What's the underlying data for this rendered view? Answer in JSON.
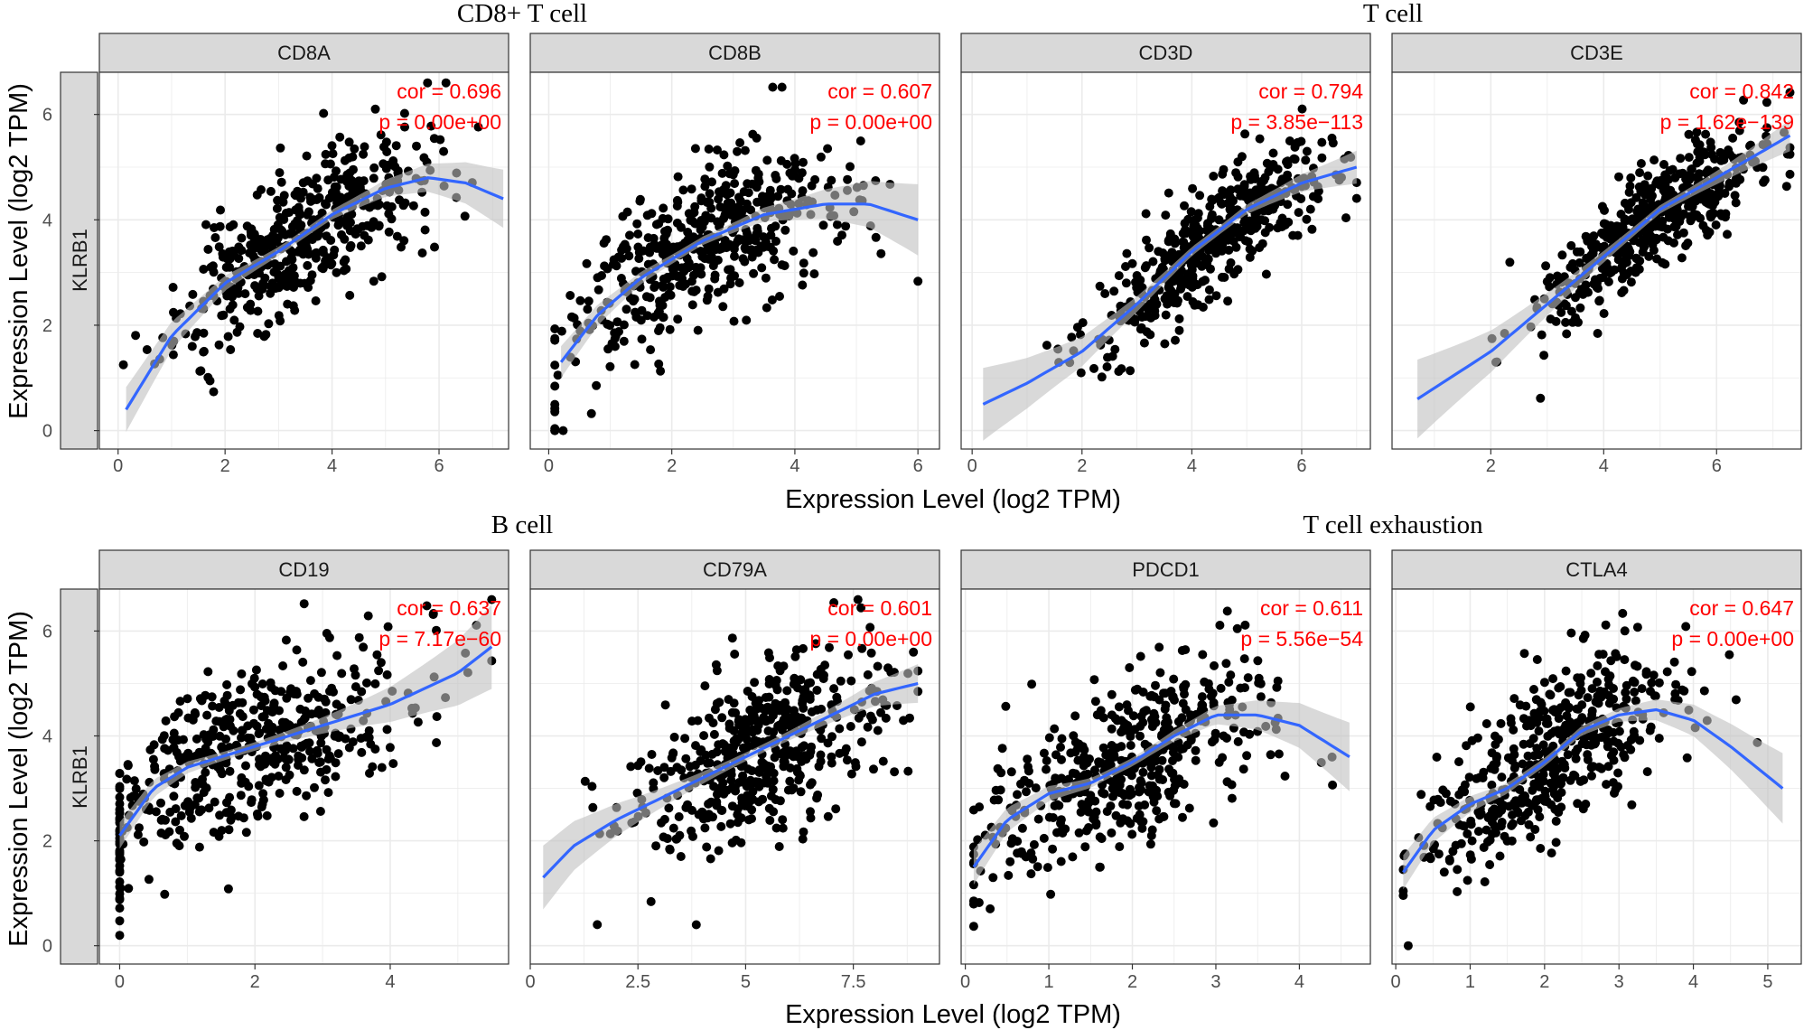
{
  "figure": {
    "x_axis_title": "Expression Level (log2 TPM)",
    "y_axis_title": "Expression Level (log2 TPM)",
    "row_strip_label": "KLRB1",
    "group_titles": [
      {
        "text": "CD8+ T cell"
      },
      {
        "text": "T cell"
      },
      {
        "text": "B cell"
      },
      {
        "text": "T cell exhaustion"
      }
    ],
    "colors": {
      "points": "#000000",
      "fit_line": "#3366ff",
      "ci_band": "#bfbfbf",
      "stat_text": "#ff0000",
      "strip_fill": "#d9d9d9",
      "grid": "#ebebeb"
    }
  },
  "chart_data": [
    {
      "type": "scatter",
      "title": "CD8A",
      "gene_y": "KLRB1",
      "cor": "cor = 0.696",
      "p": "p = 0.00e+00",
      "xlim": [
        -0.35,
        7.3
      ],
      "ylim": [
        -0.35,
        6.8
      ],
      "xticks": [
        0,
        2,
        4,
        6
      ],
      "yticks": [
        0,
        2,
        4,
        6
      ],
      "x_range": [
        0.1,
        7.1
      ],
      "x_center": 3.4,
      "x_sd": 1.15,
      "fit": [
        [
          0.15,
          0.4
        ],
        [
          1,
          1.8
        ],
        [
          2,
          2.8
        ],
        [
          3,
          3.4
        ],
        [
          4,
          4.1
        ],
        [
          5,
          4.6
        ],
        [
          5.8,
          4.8
        ],
        [
          6.5,
          4.7
        ],
        [
          7.2,
          4.4
        ]
      ],
      "resid_sd": 0.65,
      "n": 470,
      "seed": 11
    },
    {
      "type": "scatter",
      "title": "CD8B",
      "gene_y": "KLRB1",
      "cor": "cor = 0.607",
      "p": "p = 0.00e+00",
      "xlim": [
        -0.3,
        6.35
      ],
      "ylim": [
        -0.35,
        6.8
      ],
      "xticks": [
        0,
        2,
        4,
        6
      ],
      "yticks": [
        0,
        2,
        4,
        6
      ],
      "x_range": [
        0.1,
        6.0
      ],
      "x_center": 2.4,
      "x_sd": 1.1,
      "fit": [
        [
          0.2,
          1.3
        ],
        [
          0.8,
          2.2
        ],
        [
          1.5,
          2.9
        ],
        [
          2.5,
          3.6
        ],
        [
          3.5,
          4.1
        ],
        [
          4.5,
          4.3
        ],
        [
          5.2,
          4.3
        ],
        [
          6.0,
          4.0
        ]
      ],
      "resid_sd": 0.72,
      "n": 480,
      "seed": 23
    },
    {
      "type": "scatter",
      "title": "CD3D",
      "gene_y": "KLRB1",
      "cor": "cor = 0.794",
      "p": "p = 3.85e−113",
      "xlim": [
        -0.2,
        7.25
      ],
      "ylim": [
        -0.35,
        6.8
      ],
      "xticks": [
        0,
        2,
        4,
        6
      ],
      "yticks": [
        0,
        2,
        4,
        6
      ],
      "x_range": [
        0.2,
        7.0
      ],
      "x_center": 4.4,
      "x_sd": 1.05,
      "fit": [
        [
          0.2,
          0.5
        ],
        [
          1,
          0.9
        ],
        [
          2,
          1.5
        ],
        [
          3,
          2.4
        ],
        [
          4,
          3.4
        ],
        [
          5,
          4.2
        ],
        [
          6,
          4.7
        ],
        [
          7,
          5.0
        ]
      ],
      "resid_sd": 0.5,
      "n": 480,
      "seed": 37
    },
    {
      "type": "scatter",
      "title": "CD3E",
      "gene_y": "KLRB1",
      "cor": "cor = 0.842",
      "p": "p = 1.62e−139",
      "xlim": [
        0.25,
        7.5
      ],
      "ylim": [
        -0.35,
        6.8
      ],
      "xticks": [
        2,
        4,
        6
      ],
      "yticks": [
        0,
        2,
        4,
        6
      ],
      "x_range": [
        0.8,
        7.3
      ],
      "x_center": 4.9,
      "x_sd": 1.0,
      "fit": [
        [
          0.7,
          0.6
        ],
        [
          2,
          1.5
        ],
        [
          3,
          2.4
        ],
        [
          4,
          3.3
        ],
        [
          5,
          4.2
        ],
        [
          6,
          4.8
        ],
        [
          7.3,
          5.6
        ]
      ],
      "resid_sd": 0.5,
      "n": 480,
      "seed": 41
    },
    {
      "type": "scatter",
      "title": "CD19",
      "gene_y": "KLRB1",
      "cor": "cor = 0.637",
      "p": "p = 7.17e−60",
      "xlim": [
        -0.3,
        5.75
      ],
      "ylim": [
        -0.35,
        6.8
      ],
      "xticks": [
        0,
        2,
        4
      ],
      "yticks": [
        0,
        2,
        4,
        6
      ],
      "x_range": [
        0.0,
        5.5
      ],
      "x_center": 1.8,
      "x_sd": 1.25,
      "fit": [
        [
          0,
          2.1
        ],
        [
          0.5,
          3.0
        ],
        [
          1,
          3.4
        ],
        [
          2,
          3.8
        ],
        [
          3,
          4.2
        ],
        [
          4,
          4.6
        ],
        [
          5,
          5.2
        ],
        [
          5.5,
          5.7
        ]
      ],
      "resid_sd": 0.75,
      "n": 480,
      "seed": 53
    },
    {
      "type": "scatter",
      "title": "CD79A",
      "gene_y": "KLRB1",
      "cor": "cor = 0.601",
      "p": "p = 0.00e+00",
      "xlim": [
        0,
        9.5
      ],
      "ylim": [
        -0.35,
        6.8
      ],
      "xticks": [
        0,
        2.5,
        5,
        7.5
      ],
      "yticks": [
        0,
        2,
        4,
        6
      ],
      "x_range": [
        0.3,
        9.0
      ],
      "x_center": 5.3,
      "x_sd": 1.5,
      "fit": [
        [
          0.3,
          1.3
        ],
        [
          1,
          1.9
        ],
        [
          2,
          2.4
        ],
        [
          3,
          2.8
        ],
        [
          4,
          3.2
        ],
        [
          5,
          3.6
        ],
        [
          6,
          4.0
        ],
        [
          7,
          4.4
        ],
        [
          8,
          4.8
        ],
        [
          9,
          5.0
        ]
      ],
      "resid_sd": 0.75,
      "n": 480,
      "seed": 67
    },
    {
      "type": "scatter",
      "title": "PDCD1",
      "gene_y": "KLRB1",
      "cor": "cor = 0.611",
      "p": "p = 5.56e−54",
      "xlim": [
        -0.05,
        4.85
      ],
      "ylim": [
        -0.35,
        6.8
      ],
      "xticks": [
        0,
        1,
        2,
        3,
        4
      ],
      "yticks": [
        0,
        2,
        4,
        6
      ],
      "x_range": [
        0.1,
        4.6
      ],
      "x_center": 1.9,
      "x_sd": 0.9,
      "fit": [
        [
          0.1,
          1.5
        ],
        [
          0.5,
          2.4
        ],
        [
          1,
          2.9
        ],
        [
          1.5,
          3.1
        ],
        [
          2,
          3.5
        ],
        [
          2.5,
          4.0
        ],
        [
          3,
          4.4
        ],
        [
          3.5,
          4.4
        ],
        [
          4,
          4.2
        ],
        [
          4.6,
          3.6
        ]
      ],
      "resid_sd": 0.75,
      "n": 480,
      "seed": 79
    },
    {
      "type": "scatter",
      "title": "CTLA4",
      "gene_y": "KLRB1",
      "cor": "cor = 0.647",
      "p": "p = 0.00e+00",
      "xlim": [
        -0.05,
        5.45
      ],
      "ylim": [
        -0.35,
        6.8
      ],
      "xticks": [
        0,
        1,
        2,
        3,
        4,
        5
      ],
      "yticks": [
        0,
        2,
        4,
        6
      ],
      "x_range": [
        0.1,
        5.2
      ],
      "x_center": 2.1,
      "x_sd": 0.85,
      "fit": [
        [
          0.1,
          1.4
        ],
        [
          0.5,
          2.2
        ],
        [
          1,
          2.7
        ],
        [
          1.5,
          3.0
        ],
        [
          2,
          3.5
        ],
        [
          2.5,
          4.1
        ],
        [
          3,
          4.4
        ],
        [
          3.5,
          4.5
        ],
        [
          4,
          4.3
        ],
        [
          4.5,
          3.8
        ],
        [
          5.2,
          3.0
        ]
      ],
      "resid_sd": 0.75,
      "n": 470,
      "seed": 97
    }
  ]
}
